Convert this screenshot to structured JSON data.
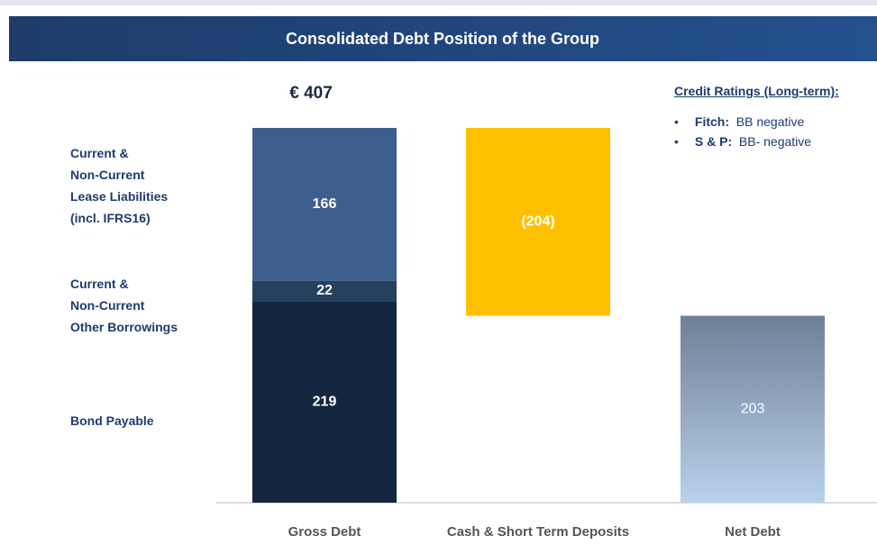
{
  "chart_data": {
    "type": "waterfall",
    "title": "Consolidated Debt Position of the Group",
    "categories": [
      "Gross Debt",
      "Cash & Short Term Deposits",
      "Net Debt"
    ],
    "segments": [
      {
        "name": "Bond Payable",
        "color": "#14263f",
        "value": 219
      },
      {
        "name": "Current &\nNon-Current\nOther Borrowings",
        "color": "#26405f",
        "value": 22
      },
      {
        "name": "Current &\nNon-Current\nLease Liabilities\n(incl. IFRS16)",
        "color": "#3b5e8d",
        "value": 166
      }
    ],
    "total": 407,
    "total_label": "€ 407",
    "change": {
      "value": -204,
      "value_label": "(204)",
      "color": "#ffc000"
    },
    "result": {
      "value": 203,
      "color_top": "#6e8096",
      "color_bottom": "#b9d1ec"
    },
    "credit_ratings": {
      "title": "Credit Ratings (Long-term):",
      "items": [
        {
          "agency": "Fitch:",
          "rating": "BB negative"
        },
        {
          "agency": "S & P:",
          "rating": "BB- negative"
        }
      ]
    }
  }
}
